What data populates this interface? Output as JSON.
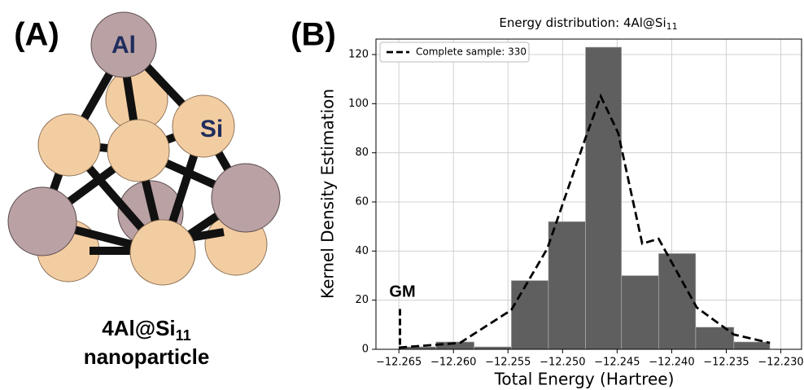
{
  "panel_a": {
    "label": "(A)",
    "atom_labels": [
      "Al",
      "Si"
    ],
    "caption": {
      "formula": "4Al@Si",
      "subscript": "11",
      "line2": "nanoparticle"
    }
  },
  "panel_b_label": "(B)",
  "chart_data": {
    "type": "histogram",
    "title": "Energy distribution: 4Al@Si",
    "title_subscript": "11",
    "x_label": "Total Energy (Hartree)",
    "y_label": "Kernel Density Estimation",
    "bins": [
      -12.265,
      -12.2616,
      -12.2581,
      -12.2547,
      -12.2513,
      -12.2479,
      -12.2446,
      -12.2412,
      -12.2378,
      -12.2343,
      -12.231
    ],
    "values": [
      1,
      3,
      1,
      28,
      52,
      123,
      30,
      39,
      9,
      3
    ],
    "color": "#5f5f5f",
    "line": {
      "name": "Complete sample: 330",
      "color": "#000000",
      "x": [
        -12.265,
        -12.2594,
        -12.2547,
        -12.2514,
        -12.2479,
        -12.2465,
        -12.2449,
        -12.2427,
        -12.2412,
        -12.2397,
        -12.2377,
        -12.2343,
        -12.231
      ],
      "values": [
        0.7,
        2.6,
        16,
        41,
        86,
        103,
        88,
        43,
        45,
        33,
        17,
        6,
        2.6
      ]
    },
    "annotation": {
      "text": "GM",
      "x": -12.2649
    },
    "xlim": [
      -12.2671,
      -12.2281
    ],
    "ylim": [
      0,
      126.3
    ],
    "xticks": [
      {
        "value": -12.265,
        "label": "−12.265"
      },
      {
        "value": -12.26,
        "label": "−12.260"
      },
      {
        "value": -12.255,
        "label": "−12.255"
      },
      {
        "value": -12.25,
        "label": "−12.250"
      },
      {
        "value": -12.245,
        "label": "−12.245"
      },
      {
        "value": -12.24,
        "label": "−12.240"
      },
      {
        "value": -12.235,
        "label": "−12.235"
      },
      {
        "value": -12.23,
        "label": "−12.230"
      }
    ],
    "yticks": [
      0,
      20,
      40,
      60,
      80,
      100,
      120
    ],
    "grid": true,
    "legend": "upper left"
  }
}
